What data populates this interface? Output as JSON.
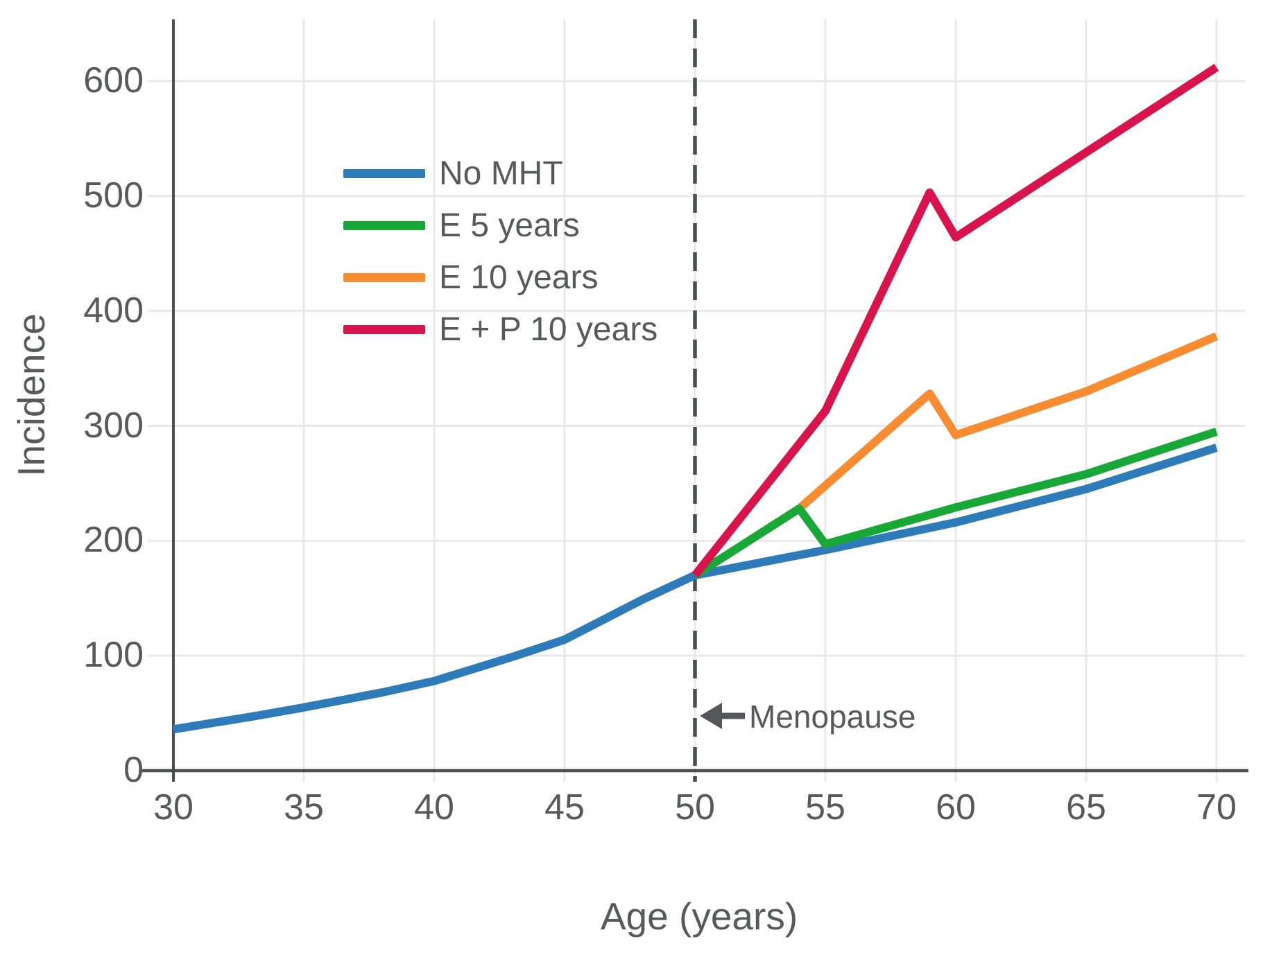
{
  "figure": {
    "background": "#ffffff",
    "text_color": "#58595b",
    "axis_color": "#4b4d50",
    "grid_color": "#e9e9ea"
  },
  "chart_data": {
    "type": "line",
    "title": "",
    "xlabel": "Age (years)",
    "ylabel": "Incidence",
    "x_ticks": [
      30,
      35,
      40,
      45,
      50,
      55,
      60,
      65,
      70
    ],
    "y_ticks": [
      0,
      100,
      200,
      300,
      400,
      500,
      600
    ],
    "xlim": [
      30,
      70
    ],
    "ylim": [
      0,
      654
    ],
    "grid": true,
    "legend_position": "upper-left-inside",
    "menopause_age": 50,
    "annotations": [
      {
        "text": "Menopause",
        "arrow": "left",
        "x": 50,
        "y": 47
      }
    ],
    "series": [
      {
        "name": "No MHT",
        "color": "#2d7cb9",
        "points": [
          [
            30,
            36
          ],
          [
            33,
            47
          ],
          [
            35,
            55
          ],
          [
            38,
            68
          ],
          [
            40,
            78
          ],
          [
            43,
            99
          ],
          [
            45,
            114
          ],
          [
            48,
            149
          ],
          [
            50,
            170
          ],
          [
            55,
            192
          ],
          [
            60,
            216
          ],
          [
            65,
            245
          ],
          [
            70,
            281
          ]
        ]
      },
      {
        "name": "E 5 years",
        "color": "#18a838",
        "points": [
          [
            50,
            170
          ],
          [
            54,
            228
          ],
          [
            55,
            197
          ],
          [
            60,
            229
          ],
          [
            65,
            258
          ],
          [
            70,
            295
          ]
        ]
      },
      {
        "name": "E 10 years",
        "color": "#f98b30",
        "points": [
          [
            50,
            170
          ],
          [
            54,
            228
          ],
          [
            59,
            328
          ],
          [
            60,
            292
          ],
          [
            65,
            330
          ],
          [
            70,
            378
          ]
        ]
      },
      {
        "name": "E + P 10 years",
        "color": "#d9134b",
        "points": [
          [
            50,
            170
          ],
          [
            55,
            313
          ],
          [
            59,
            503
          ],
          [
            60,
            464
          ],
          [
            65,
            538
          ],
          [
            70,
            612
          ]
        ]
      }
    ]
  }
}
